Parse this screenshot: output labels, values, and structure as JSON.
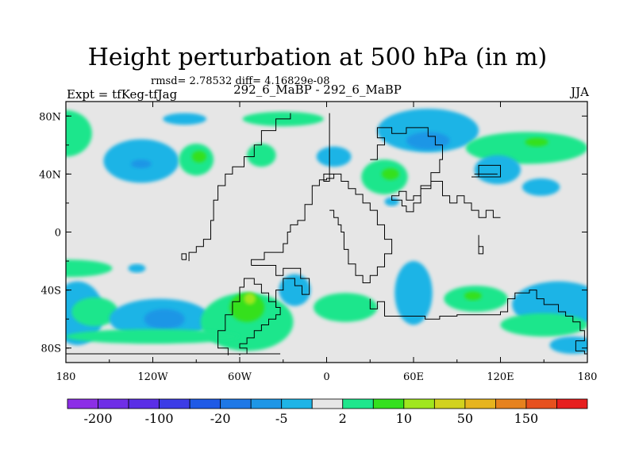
{
  "title": "Height perturbation at 500 hPa (in m)",
  "subtitle": "rmsd= 2.78532 diff= 4.16829e-08",
  "left_label": "Expt = tfKeg-tfJag",
  "center_label": "292_6_MaBP - 292_6_MaBP",
  "right_label": "JJA",
  "chart_data": {
    "type": "heatmap",
    "title": "Height perturbation at 500 hPa (in m)",
    "xlim": [
      -180,
      180
    ],
    "ylim": [
      -90,
      90
    ],
    "x_ticks": [
      {
        "value": -180,
        "label": "180"
      },
      {
        "value": -120,
        "label": "120W"
      },
      {
        "value": -60,
        "label": "60W"
      },
      {
        "value": 0,
        "label": "0"
      },
      {
        "value": 60,
        "label": "60E"
      },
      {
        "value": 120,
        "label": "120E"
      },
      {
        "value": 180,
        "label": "180"
      }
    ],
    "y_ticks": [
      {
        "value": 80,
        "label": "80N"
      },
      {
        "value": 40,
        "label": "40N"
      },
      {
        "value": 0,
        "label": "0"
      },
      {
        "value": -40,
        "label": "40S"
      },
      {
        "value": -80,
        "label": "80S"
      }
    ],
    "colorbar": {
      "colors": [
        "#8c2ee6",
        "#6f2ee6",
        "#5a2ee6",
        "#3c3ce6",
        "#1f5ae6",
        "#1e78e6",
        "#1e96e6",
        "#1eb4e6",
        "#e6e6e6",
        "#1ee68c",
        "#34e01e",
        "#a0e61e",
        "#d2d21e",
        "#e6b41e",
        "#e6821e",
        "#e6501e",
        "#e61e1e"
      ],
      "labels": [
        "-200",
        "-100",
        "-20",
        "-5",
        "2",
        "10",
        "50",
        "150"
      ]
    },
    "regions": [
      {
        "color": "#1ee68c",
        "lon": -180,
        "lat": 68,
        "rlon": 18,
        "rlat": 16
      },
      {
        "color": "#1eb4e6",
        "lon": -128,
        "lat": 49,
        "rlon": 26,
        "rlat": 15
      },
      {
        "color": "#1e96e6",
        "lon": -128,
        "lat": 47,
        "rlon": 7,
        "rlat": 3
      },
      {
        "color": "#1ee68c",
        "lon": -90,
        "lat": 50,
        "rlon": 12,
        "rlat": 11
      },
      {
        "color": "#34e01e",
        "lon": -88,
        "lat": 52,
        "rlon": 5,
        "rlat": 4
      },
      {
        "color": "#1eb4e6",
        "lon": -98,
        "lat": 78,
        "rlon": 15,
        "rlat": 4
      },
      {
        "color": "#1ee68c",
        "lon": -30,
        "lat": 78,
        "rlon": 28,
        "rlat": 5
      },
      {
        "color": "#1ee68c",
        "lon": -45,
        "lat": 53,
        "rlon": 10,
        "rlat": 8
      },
      {
        "color": "#1eb4e6",
        "lon": 5,
        "lat": 52,
        "rlon": 12,
        "rlat": 7
      },
      {
        "color": "#1eb4e6",
        "lon": 70,
        "lat": 70,
        "rlon": 35,
        "rlat": 15
      },
      {
        "color": "#1e96e6",
        "lon": 70,
        "lat": 63,
        "rlon": 15,
        "rlat": 6
      },
      {
        "color": "#1ee68c",
        "lon": 40,
        "lat": 38,
        "rlon": 16,
        "rlat": 12
      },
      {
        "color": "#34e01e",
        "lon": 44,
        "lat": 40,
        "rlon": 6,
        "rlat": 4
      },
      {
        "color": "#1eb4e6",
        "lon": 45,
        "lat": 21,
        "rlon": 5,
        "rlat": 3
      },
      {
        "color": "#1ee68c",
        "lon": 138,
        "lat": 58,
        "rlon": 42,
        "rlat": 11
      },
      {
        "color": "#34e01e",
        "lon": 145,
        "lat": 62,
        "rlon": 8,
        "rlat": 3
      },
      {
        "color": "#1eb4e6",
        "lon": 118,
        "lat": 43,
        "rlon": 16,
        "rlat": 10
      },
      {
        "color": "#1eb4e6",
        "lon": 148,
        "lat": 31,
        "rlon": 13,
        "rlat": 6
      },
      {
        "color": "#1ee68c",
        "lon": -178,
        "lat": -25,
        "rlon": 30,
        "rlat": 6
      },
      {
        "color": "#1eb4e6",
        "lon": -172,
        "lat": -56,
        "rlon": 18,
        "rlat": 22
      },
      {
        "color": "#1ee68c",
        "lon": -160,
        "lat": -55,
        "rlon": 16,
        "rlat": 10
      },
      {
        "color": "#1eb4e6",
        "lon": -115,
        "lat": -60,
        "rlon": 35,
        "rlat": 14
      },
      {
        "color": "#1e96e6",
        "lon": -112,
        "lat": -60,
        "rlon": 14,
        "rlat": 7
      },
      {
        "color": "#1eb4e6",
        "lon": -131,
        "lat": -25,
        "rlon": 6,
        "rlat": 3
      },
      {
        "color": "#1ee68c",
        "lon": -55,
        "lat": -62,
        "rlon": 32,
        "rlat": 20
      },
      {
        "color": "#34e01e",
        "lon": -55,
        "lat": -52,
        "rlon": 12,
        "rlat": 10
      },
      {
        "color": "#a0e61e",
        "lon": -53,
        "lat": -46,
        "rlon": 4,
        "rlat": 4
      },
      {
        "color": "#1eb4e6",
        "lon": -22,
        "lat": -40,
        "rlon": 11,
        "rlat": 11
      },
      {
        "color": "#1ee68c",
        "lon": 13,
        "lat": -52,
        "rlon": 22,
        "rlat": 10
      },
      {
        "color": "#1ee68c",
        "lon": -120,
        "lat": -72,
        "rlon": 60,
        "rlat": 5
      },
      {
        "color": "#1eb4e6",
        "lon": 60,
        "lat": -42,
        "rlon": 13,
        "rlat": 22
      },
      {
        "color": "#1ee68c",
        "lon": 103,
        "lat": -46,
        "rlon": 22,
        "rlat": 9
      },
      {
        "color": "#34e01e",
        "lon": 101,
        "lat": -44,
        "rlon": 6,
        "rlat": 3
      },
      {
        "color": "#1eb4e6",
        "lon": 160,
        "lat": -50,
        "rlon": 32,
        "rlat": 16
      },
      {
        "color": "#1ee68c",
        "lon": 150,
        "lat": -64,
        "rlon": 30,
        "rlat": 8
      },
      {
        "color": "#1eb4e6",
        "lon": 170,
        "lat": -78,
        "rlon": 16,
        "rlat": 6
      }
    ],
    "coastlines": [
      [
        [
          -32,
          -84
        ],
        [
          -180,
          -84
        ]
      ],
      [
        [
          -60,
          -85
        ],
        [
          -60,
          -84
        ],
        [
          -55,
          -84
        ],
        [
          -55,
          -80
        ],
        [
          -60,
          -80
        ],
        [
          -60,
          -77
        ],
        [
          -55,
          -77
        ],
        [
          -55,
          -73
        ],
        [
          -50,
          -73
        ],
        [
          -50,
          -68
        ],
        [
          -45,
          -68
        ],
        [
          -45,
          -64
        ],
        [
          -40,
          -64
        ],
        [
          -40,
          -60
        ],
        [
          -35,
          -60
        ],
        [
          -35,
          -57
        ],
        [
          -32,
          -57
        ],
        [
          -32,
          -52
        ],
        [
          -35,
          -52
        ],
        [
          -35,
          -48
        ],
        [
          -40,
          -48
        ],
        [
          -40,
          -42
        ],
        [
          -45,
          -42
        ],
        [
          -45,
          -36
        ],
        [
          -50,
          -36
        ],
        [
          -50,
          -32
        ],
        [
          -57,
          -32
        ],
        [
          -57,
          -38
        ],
        [
          -60,
          -38
        ],
        [
          -60,
          -48
        ],
        [
          -65,
          -48
        ],
        [
          -65,
          -57
        ],
        [
          -70,
          -57
        ],
        [
          -70,
          -68
        ],
        [
          -75,
          -68
        ],
        [
          -75,
          -80
        ],
        [
          -68,
          -80
        ],
        [
          -68,
          -85
        ]
      ],
      [
        [
          -52,
          -23
        ],
        [
          -35,
          -23
        ],
        [
          -35,
          -30
        ],
        [
          -30,
          -30
        ],
        [
          -30,
          -25
        ],
        [
          -18,
          -25
        ],
        [
          -18,
          -32
        ],
        [
          -12,
          -32
        ],
        [
          -12,
          -43
        ],
        [
          -17,
          -43
        ],
        [
          -17,
          -37
        ],
        [
          -22,
          -37
        ],
        [
          -22,
          -32
        ],
        [
          -30,
          -32
        ],
        [
          -30,
          -40
        ],
        [
          -35,
          -40
        ],
        [
          -35,
          -52
        ]
      ],
      [
        [
          -52,
          -23
        ],
        [
          -52,
          -19
        ],
        [
          -43,
          -19
        ],
        [
          -43,
          -14
        ],
        [
          -30,
          -14
        ],
        [
          -30,
          -8
        ],
        [
          -27,
          -8
        ],
        [
          -27,
          0
        ],
        [
          -25,
          0
        ],
        [
          -25,
          5
        ],
        [
          -20,
          5
        ],
        [
          -20,
          8
        ],
        [
          -15,
          8
        ],
        [
          -15,
          19
        ],
        [
          -10,
          19
        ],
        [
          -10,
          32
        ],
        [
          -5,
          32
        ],
        [
          -5,
          36
        ],
        [
          0,
          36
        ],
        [
          0,
          37
        ],
        [
          5,
          37
        ],
        [
          5,
          40
        ],
        [
          10,
          40
        ],
        [
          10,
          35
        ],
        [
          15,
          35
        ],
        [
          15,
          30
        ],
        [
          20,
          30
        ],
        [
          20,
          26
        ],
        [
          25,
          26
        ],
        [
          25,
          20
        ],
        [
          30,
          20
        ],
        [
          30,
          15
        ],
        [
          35,
          15
        ],
        [
          35,
          5
        ],
        [
          40,
          5
        ],
        [
          40,
          -5
        ],
        [
          45,
          -5
        ],
        [
          45,
          -15
        ],
        [
          40,
          -15
        ],
        [
          40,
          -24
        ],
        [
          35,
          -24
        ],
        [
          35,
          -30
        ],
        [
          30,
          -30
        ],
        [
          30,
          -35
        ],
        [
          25,
          -35
        ],
        [
          25,
          -30
        ],
        [
          20,
          -30
        ],
        [
          20,
          -22
        ],
        [
          15,
          -22
        ],
        [
          15,
          -12
        ],
        [
          12,
          -12
        ],
        [
          12,
          0
        ],
        [
          10,
          0
        ],
        [
          10,
          5
        ],
        [
          8,
          5
        ],
        [
          8,
          10
        ],
        [
          5,
          10
        ],
        [
          5,
          15
        ],
        [
          2,
          15
        ]
      ],
      [
        [
          -95,
          -20
        ],
        [
          -95,
          -14
        ],
        [
          -90,
          -14
        ],
        [
          -90,
          -10
        ],
        [
          -85,
          -10
        ],
        [
          -85,
          -5
        ],
        [
          -80,
          -5
        ],
        [
          -80,
          8
        ],
        [
          -78,
          8
        ],
        [
          -78,
          22
        ],
        [
          -75,
          22
        ],
        [
          -75,
          32
        ],
        [
          -70,
          32
        ],
        [
          -70,
          40
        ],
        [
          -65,
          40
        ],
        [
          -65,
          45
        ],
        [
          -57,
          45
        ],
        [
          -57,
          52
        ],
        [
          -50,
          52
        ],
        [
          -50,
          60
        ],
        [
          -45,
          60
        ],
        [
          -45,
          70
        ],
        [
          -35,
          70
        ],
        [
          -35,
          78
        ],
        [
          -25,
          78
        ],
        [
          -25,
          82
        ]
      ],
      [
        [
          2,
          82
        ],
        [
          2,
          35
        ],
        [
          -2,
          35
        ],
        [
          -2,
          40
        ],
        [
          5,
          40
        ]
      ],
      [
        [
          -100,
          -19
        ],
        [
          -100,
          -15
        ],
        [
          -97,
          -15
        ],
        [
          -97,
          -19
        ],
        [
          -100,
          -19
        ]
      ],
      [
        [
          30,
          50
        ],
        [
          35,
          50
        ],
        [
          35,
          60
        ],
        [
          40,
          60
        ],
        [
          40,
          65
        ],
        [
          35,
          65
        ],
        [
          35,
          72
        ],
        [
          45,
          72
        ],
        [
          45,
          68
        ],
        [
          55,
          68
        ],
        [
          55,
          72
        ],
        [
          70,
          72
        ],
        [
          70,
          66
        ],
        [
          75,
          66
        ],
        [
          75,
          60
        ],
        [
          80,
          60
        ],
        [
          80,
          50
        ],
        [
          78,
          50
        ],
        [
          78,
          41
        ],
        [
          72,
          41
        ],
        [
          72,
          32
        ],
        [
          65,
          32
        ],
        [
          65,
          25
        ],
        [
          60,
          25
        ],
        [
          60,
          22
        ],
        [
          55,
          22
        ],
        [
          55,
          28
        ],
        [
          50,
          28
        ],
        [
          50,
          25
        ],
        [
          45,
          25
        ],
        [
          45,
          22
        ],
        [
          52,
          22
        ],
        [
          52,
          18
        ],
        [
          55,
          18
        ],
        [
          55,
          14
        ],
        [
          60,
          14
        ],
        [
          60,
          20
        ],
        [
          65,
          20
        ],
        [
          65,
          30
        ],
        [
          72,
          30
        ],
        [
          72,
          35
        ],
        [
          80,
          35
        ],
        [
          80,
          25
        ],
        [
          85,
          25
        ],
        [
          85,
          20
        ],
        [
          90,
          20
        ],
        [
          90,
          25
        ],
        [
          95,
          25
        ],
        [
          95,
          20
        ],
        [
          100,
          20
        ],
        [
          100,
          15
        ],
        [
          105,
          15
        ],
        [
          105,
          10
        ],
        [
          110,
          10
        ],
        [
          110,
          15
        ],
        [
          115,
          15
        ],
        [
          115,
          10
        ],
        [
          120,
          10
        ]
      ],
      [
        [
          100,
          38
        ],
        [
          105,
          38
        ],
        [
          105,
          46
        ],
        [
          120,
          46
        ],
        [
          120,
          38
        ],
        [
          100,
          38
        ]
      ],
      [
        [
          102,
          40
        ],
        [
          118,
          40
        ]
      ],
      [
        [
          105,
          -2
        ],
        [
          105,
          -10
        ],
        [
          108,
          -10
        ],
        [
          108,
          -15
        ],
        [
          105,
          -15
        ],
        [
          105,
          -2
        ]
      ],
      [
        [
          30,
          -46
        ],
        [
          30,
          -53
        ],
        [
          35,
          -53
        ],
        [
          35,
          -48
        ],
        [
          40,
          -48
        ],
        [
          40,
          -58
        ],
        [
          68,
          -58
        ],
        [
          68,
          -60
        ],
        [
          78,
          -60
        ],
        [
          78,
          -58
        ],
        [
          90,
          -58
        ],
        [
          90,
          -57
        ],
        [
          120,
          -57
        ],
        [
          120,
          -55
        ],
        [
          125,
          -55
        ],
        [
          125,
          -46
        ],
        [
          130,
          -46
        ],
        [
          130,
          -42
        ],
        [
          140,
          -42
        ],
        [
          140,
          -40
        ],
        [
          145,
          -40
        ],
        [
          145,
          -46
        ],
        [
          150,
          -46
        ],
        [
          150,
          -50
        ],
        [
          160,
          -50
        ],
        [
          160,
          -55
        ],
        [
          165,
          -55
        ],
        [
          165,
          -58
        ],
        [
          170,
          -58
        ],
        [
          170,
          -62
        ],
        [
          175,
          -62
        ],
        [
          175,
          -68
        ],
        [
          178,
          -68
        ],
        [
          178,
          -75
        ],
        [
          172,
          -75
        ],
        [
          172,
          -82
        ],
        [
          178,
          -82
        ],
        [
          178,
          -84
        ],
        [
          180,
          -84
        ]
      ]
    ]
  }
}
